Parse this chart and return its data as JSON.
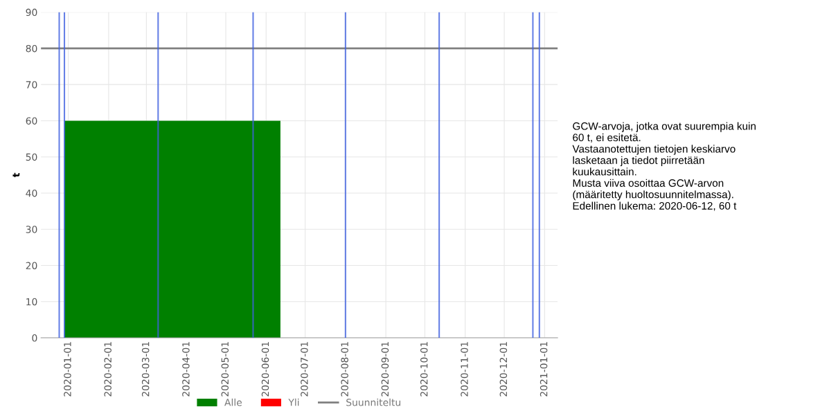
{
  "chart_data": {
    "type": "area",
    "ylabel": "t",
    "x": [
      "2019-12-29",
      "2020-06-12"
    ],
    "series": [
      {
        "name": "Alle",
        "color": "#008000",
        "values": [
          60,
          60
        ]
      },
      {
        "name": "Yli",
        "color": "#ff0000",
        "values": [
          null,
          null
        ]
      }
    ],
    "xlim": [
      "2019-12-11",
      "2021-01-11"
    ],
    "xticks": [
      "2020-01-01",
      "2020-02-01",
      "2020-03-01",
      "2020-04-01",
      "2020-05-01",
      "2020-06-01",
      "2020-07-01",
      "2020-08-01",
      "2020-09-01",
      "2020-10-01",
      "2020-11-01",
      "2020-12-01",
      "2021-01-01"
    ],
    "ylim": [
      0,
      90
    ],
    "yticks": [
      0,
      10,
      20,
      30,
      40,
      50,
      60,
      70,
      80,
      90
    ],
    "ref_lines": [
      {
        "axis": "y",
        "value": 80,
        "label": "Suunniteltu",
        "color": "#808080"
      },
      {
        "axis": "x",
        "value": "2019-12-25",
        "color": "#4060e0"
      },
      {
        "axis": "x",
        "value": "2019-12-29",
        "color": "#4060e0"
      },
      {
        "axis": "x",
        "value": "2020-03-10",
        "color": "#4060e0"
      },
      {
        "axis": "x",
        "value": "2020-05-22",
        "color": "#4060e0"
      },
      {
        "axis": "x",
        "value": "2020-08-01",
        "color": "#4060e0"
      },
      {
        "axis": "x",
        "value": "2020-10-12",
        "color": "#4060e0"
      },
      {
        "axis": "x",
        "value": "2020-12-23",
        "color": "#4060e0"
      },
      {
        "axis": "x",
        "value": "2020-12-28",
        "color": "#4060e0"
      }
    ],
    "grid": true,
    "legend": "bottom",
    "annotations": [
      "GCW-arvoja, jotka ovat suurempia kuin\n60 t, ei esitetä.\nVastaanotettujen tietojen keskiarvo\nlasketaan ja tiedot piirretään\nkuukausittain.\nMusta viiva osoittaa GCW-arvon\n(määritetty huoltosuunnitelmassa).\nEdellinen lukema: 2020-06-12, 60 t"
    ]
  }
}
